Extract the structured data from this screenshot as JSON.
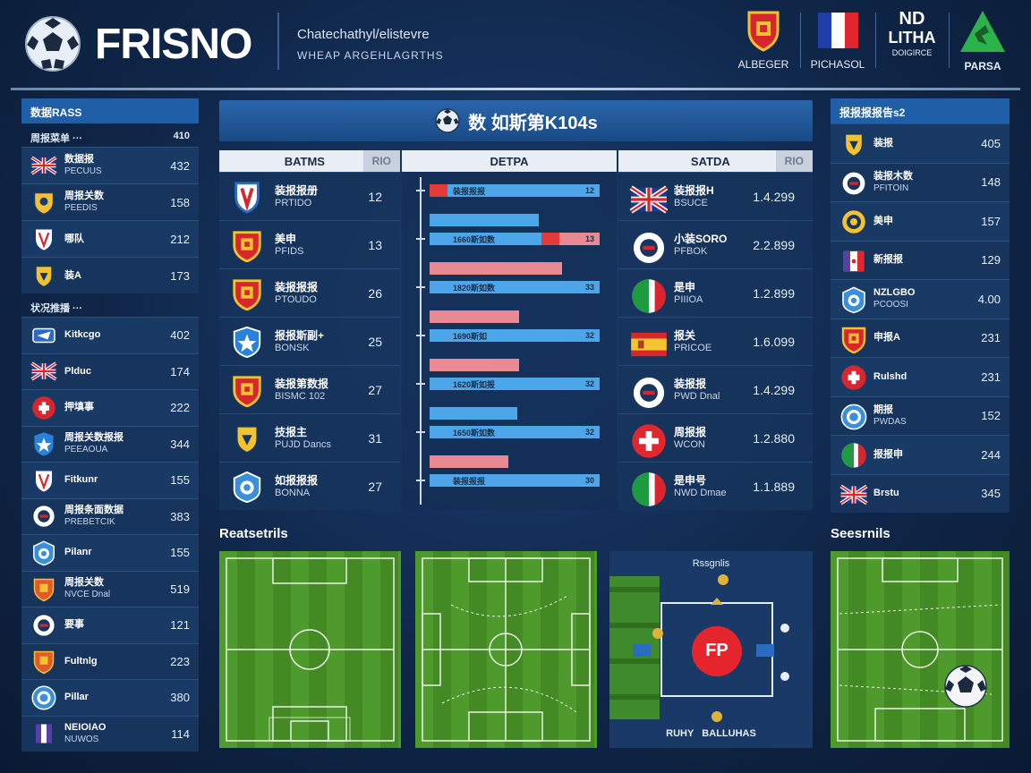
{
  "header": {
    "brand": "FRISNO",
    "tagline1": "Chatechathyl/elistevre",
    "tagline2": "WHEAP ARGEHLAGRTHS",
    "badges": [
      {
        "label": "ALBEGER"
      },
      {
        "label": "PICHASOL"
      },
      {
        "label": "DOIGIRCE",
        "big1": "ND",
        "big2": "LITHA"
      },
      {
        "label": "PARSA"
      }
    ]
  },
  "left_sidebar": {
    "title": "数据RASS",
    "groups": [
      {
        "subtitle": "周报菜单 ···",
        "subtitle_value": "410",
        "rows": [
          {
            "icon": "uk-flag-icon",
            "n1": "数据报",
            "n2": "PECUUS",
            "value": "432"
          },
          {
            "icon": "yellow-shield-icon",
            "n1": "周报关数",
            "n2": "PEEDIS",
            "value": "158"
          },
          {
            "icon": "shield-icon",
            "n1": "哪队",
            "n2": "",
            "value": "212"
          },
          {
            "icon": "yellow-crest-icon",
            "n1": "装A",
            "n2": "",
            "value": "173"
          }
        ]
      },
      {
        "subtitle": "状况推播 ···",
        "subtitle_value": "",
        "rows": [
          {
            "icon": "star-crest-icon",
            "n1": "Kitkcgo",
            "n2": "",
            "value": "402"
          },
          {
            "icon": "uk-flag-icon",
            "n1": "Plduc",
            "n2": "",
            "value": "174"
          },
          {
            "icon": "red-circle-icon",
            "n1": "押填事",
            "n2": "",
            "value": "222"
          },
          {
            "icon": "star-shield-icon",
            "n1": "周报关数报报",
            "n2": "PEEAOUA",
            "value": "344"
          },
          {
            "icon": "shield-icon",
            "n1": "Fitkunr",
            "n2": "",
            "value": "155"
          },
          {
            "icon": "round-crest-icon",
            "n1": "周报条面数据",
            "n2": "PREBETCIK",
            "value": "383"
          },
          {
            "icon": "blue-crest-icon",
            "n1": "Pilanr",
            "n2": "",
            "value": "155"
          },
          {
            "icon": "red-shield-icon",
            "n1": "周报关数",
            "n2": "NVCE Dnal",
            "value": "519"
          },
          {
            "icon": "round-crest-icon",
            "n1": "要事",
            "n2": "",
            "value": "121"
          },
          {
            "icon": "red-shield-icon",
            "n1": "Fultnlg",
            "n2": "",
            "value": "223"
          },
          {
            "icon": "blue-circle-icon",
            "n1": "Pillar",
            "n2": "",
            "value": "380"
          },
          {
            "icon": "purple-crest-icon",
            "n1": "NEIOIAO",
            "n2": "NUWOS",
            "value": "114"
          }
        ]
      }
    ]
  },
  "center": {
    "title": "数 如斯第K104s",
    "col_left": "BATMS",
    "col_left_sub": "RIO",
    "col_mid": "DETPA",
    "col_right": "SATDA",
    "col_right_sub": "RIO",
    "left_rows": [
      {
        "icon": "blue-red-shield-icon",
        "n1": "装报报册",
        "n2": "PRTIDO",
        "value": "12"
      },
      {
        "icon": "red-yellow-shield-icon",
        "n1": "美申",
        "n2": "PFIDS",
        "value": "13"
      },
      {
        "icon": "red-yellow-shield-icon",
        "n1": "装报报报",
        "n2": "PTOUDO",
        "value": "26"
      },
      {
        "icon": "blue-star-shield-icon",
        "n1": "报报斯副+",
        "n2": "BONSK",
        "value": "25"
      },
      {
        "icon": "red-yellow-shield-icon",
        "n1": "装报第数报",
        "n2": "BISMC 102",
        "value": "27"
      },
      {
        "icon": "yellow-crest-icon",
        "n1": "技报主",
        "n2": "PUJD Dancs",
        "value": "31"
      },
      {
        "icon": "blue-crest-icon",
        "n1": "如报报报",
        "n2": "BONNA",
        "value": "27"
      }
    ],
    "bars": [
      {
        "color": "red",
        "label": "装报报报",
        "value": "12",
        "top": "12"
      },
      {
        "color": "blue",
        "label": "1660斯如数",
        "value": "13",
        "top": "12"
      },
      {
        "color": "pink",
        "label": "1820斯如数",
        "value": "33",
        "top": ""
      },
      {
        "color": "pink",
        "label": "1690斯如",
        "value": "32",
        "top": ""
      },
      {
        "color": "pink",
        "label": "1620斯如报",
        "value": "32",
        "top": ""
      },
      {
        "color": "blue",
        "label": "1650斯如数",
        "value": "32",
        "top": "12"
      },
      {
        "color": "pink",
        "label": "装报报报",
        "value": "30",
        "top": ""
      }
    ],
    "right_rows": [
      {
        "icon": "uk-flag-icon",
        "n1": "装报报H",
        "n2": "BSUCE",
        "value": "1.4.299"
      },
      {
        "icon": "round-crest-icon",
        "n1": "小装SORO",
        "n2": "PFBOK",
        "value": "2.2.899"
      },
      {
        "icon": "italy-flag-icon",
        "n1": "是申",
        "n2": "PIIIOA",
        "value": "1.2.899"
      },
      {
        "icon": "spain-flag-icon",
        "n1": "报关",
        "n2": "PRICOE",
        "value": "1.6.099"
      },
      {
        "icon": "round-crest-icon",
        "n1": "装报报",
        "n2": "PWD Dnal",
        "value": "1.4.299"
      },
      {
        "icon": "swiss-flag-icon",
        "n1": "周报报",
        "n2": "WCON",
        "value": "1.2.880"
      },
      {
        "icon": "italy-flag-icon",
        "n1": "是申号",
        "n2": "NWD Dmae",
        "value": "1.1.889"
      }
    ]
  },
  "right_sidebar": {
    "title": "报报报报告s2",
    "rows": [
      {
        "icon": "yellow-crest-icon",
        "n1": "装报",
        "n2": "",
        "value": "405"
      },
      {
        "icon": "round-crest-icon",
        "n1": "装报木数",
        "n2": "PFITOIN",
        "value": "148"
      },
      {
        "icon": "yellow-circle-icon",
        "n1": "美申",
        "n2": "",
        "value": "157"
      },
      {
        "icon": "flag-icon",
        "n1": "新报报",
        "n2": "",
        "value": "129"
      },
      {
        "icon": "blue-crest-icon",
        "n1": "NZLGBO",
        "n2": "PCOOSI",
        "value": "4.00"
      },
      {
        "icon": "red-yellow-shield-icon",
        "n1": "申报A",
        "n2": "",
        "value": "231"
      },
      {
        "icon": "red-circle-icon",
        "n1": "Rulshd",
        "n2": "",
        "value": "231"
      },
      {
        "icon": "blue-circle-icon",
        "n1": "期报",
        "n2": "PWDAS",
        "value": "152"
      },
      {
        "icon": "italy-flag-icon",
        "n1": "报报申",
        "n2": "",
        "value": "244"
      },
      {
        "icon": "uk-flag-icon",
        "n1": "Brstu",
        "n2": "",
        "value": "345"
      }
    ]
  },
  "bottom": {
    "left_label": "Reatsetrils",
    "right_label": "Seesrnils",
    "diagram_title": "Rssgnlis",
    "diagram_badge": "FP",
    "diagram_caption": "RUHY   BALLUHAS"
  }
}
